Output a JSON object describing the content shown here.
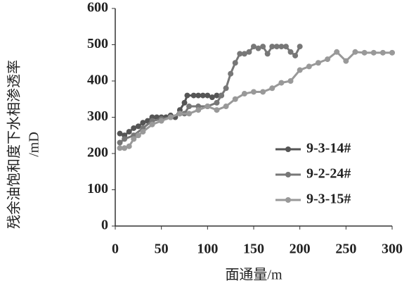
{
  "chart_data": {
    "type": "line",
    "ylabel": [
      "残余油饱和度下水相渗透率",
      "/mD"
    ],
    "xlabel": "面通量/m",
    "xlim": [
      0,
      300
    ],
    "xticks": [
      0,
      50,
      100,
      150,
      200,
      250,
      300
    ],
    "ylim": [
      0,
      600
    ],
    "yticks": [
      0,
      100,
      200,
      300,
      400,
      500,
      600
    ],
    "legend": "right",
    "series": [
      {
        "name": "9-3-14#",
        "color": "#555555",
        "x": [
          5,
          10,
          15,
          20,
          25,
          30,
          35,
          40,
          45,
          50,
          55,
          60,
          65,
          70,
          75,
          78,
          85,
          90,
          95,
          100,
          105,
          110,
          115
        ],
        "values": [
          255,
          250,
          260,
          270,
          275,
          285,
          290,
          300,
          300,
          300,
          300,
          305,
          300,
          320,
          340,
          360,
          360,
          360,
          360,
          360,
          355,
          360,
          360
        ]
      },
      {
        "name": "9-2-24#",
        "color": "#777777",
        "x": [
          5,
          10,
          20,
          30,
          40,
          50,
          60,
          70,
          75,
          80,
          90,
          100,
          110,
          115,
          120,
          125,
          130,
          135,
          140,
          145,
          150,
          155,
          160,
          165,
          170,
          175,
          180,
          185,
          190,
          195,
          200
        ],
        "values": [
          230,
          240,
          250,
          270,
          290,
          295,
          300,
          310,
          310,
          330,
          330,
          330,
          340,
          360,
          380,
          420,
          450,
          475,
          475,
          480,
          495,
          490,
          495,
          475,
          495,
          495,
          495,
          495,
          480,
          470,
          495
        ]
      },
      {
        "name": "9-3-15#",
        "color": "#999999",
        "x": [
          5,
          10,
          15,
          20,
          25,
          30,
          40,
          50,
          60,
          70,
          80,
          90,
          100,
          110,
          120,
          130,
          140,
          150,
          160,
          170,
          180,
          190,
          200,
          210,
          220,
          230,
          240,
          250,
          260,
          270,
          280,
          290,
          300
        ],
        "values": [
          215,
          215,
          220,
          240,
          250,
          260,
          280,
          290,
          300,
          310,
          310,
          320,
          330,
          320,
          330,
          350,
          365,
          370,
          370,
          380,
          395,
          400,
          430,
          440,
          450,
          460,
          480,
          455,
          480,
          478,
          478,
          478,
          478
        ]
      }
    ]
  }
}
